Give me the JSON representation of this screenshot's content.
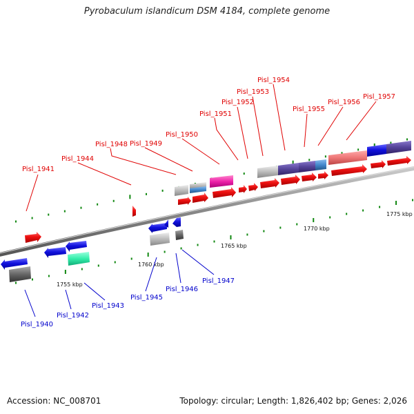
{
  "title": "Pyrobaculum islandicum DSM 4184, complete genome",
  "footer": {
    "accession": "Accession: NC_008701",
    "topology": "Topology: circular; Length: 1,826,402 bp; Genes: 2,026"
  },
  "scale_labels": [
    "1755 kbp",
    "1760 kbp",
    "1765 kbp",
    "1770 kbp",
    "1775 kbp"
  ],
  "genes": [
    {
      "id": "Pisl_1940",
      "strand": "minus"
    },
    {
      "id": "Pisl_1941",
      "strand": "plus"
    },
    {
      "id": "Pisl_1942",
      "strand": "minus"
    },
    {
      "id": "Pisl_1943",
      "strand": "minus"
    },
    {
      "id": "Pisl_1944",
      "strand": "plus"
    },
    {
      "id": "Pisl_1945",
      "strand": "minus"
    },
    {
      "id": "Pisl_1946",
      "strand": "minus"
    },
    {
      "id": "Pisl_1947",
      "strand": "minus"
    },
    {
      "id": "Pisl_1948",
      "strand": "plus"
    },
    {
      "id": "Pisl_1949",
      "strand": "plus"
    },
    {
      "id": "Pisl_1950",
      "strand": "plus"
    },
    {
      "id": "Pisl_1951",
      "strand": "plus"
    },
    {
      "id": "Pisl_1952",
      "strand": "plus"
    },
    {
      "id": "Pisl_1953",
      "strand": "plus"
    },
    {
      "id": "Pisl_1954",
      "strand": "plus"
    },
    {
      "id": "Pisl_1955",
      "strand": "plus"
    },
    {
      "id": "Pisl_1956",
      "strand": "plus"
    },
    {
      "id": "Pisl_1957",
      "strand": "plus"
    }
  ],
  "colors": {
    "plus_strand": "#ee1111",
    "minus_strand": "#1111dd",
    "backbone": "#999999",
    "tick": "#118811",
    "feature_gray": "#bbbbbb",
    "feature_darkgray": "#666666",
    "feature_teal": "#33eeaa",
    "feature_magenta": "#ee22aa",
    "feature_purple": "#554499",
    "feature_steelblue": "#4488cc",
    "feature_salmon": "#ee7777"
  }
}
